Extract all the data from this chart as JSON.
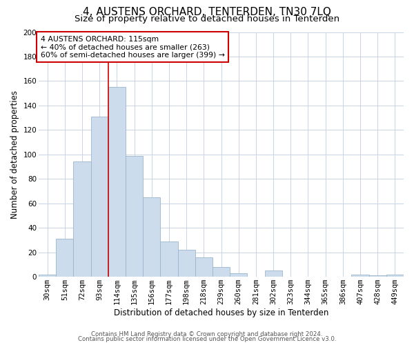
{
  "title": "4, AUSTENS ORCHARD, TENTERDEN, TN30 7LQ",
  "subtitle": "Size of property relative to detached houses in Tenterden",
  "xlabel": "Distribution of detached houses by size in Tenterden",
  "ylabel": "Number of detached properties",
  "bar_labels": [
    "30sqm",
    "51sqm",
    "72sqm",
    "93sqm",
    "114sqm",
    "135sqm",
    "156sqm",
    "177sqm",
    "198sqm",
    "218sqm",
    "239sqm",
    "260sqm",
    "281sqm",
    "302sqm",
    "323sqm",
    "344sqm",
    "365sqm",
    "386sqm",
    "407sqm",
    "428sqm",
    "449sqm"
  ],
  "bar_values": [
    2,
    31,
    94,
    131,
    155,
    99,
    65,
    29,
    22,
    16,
    8,
    3,
    0,
    5,
    0,
    0,
    0,
    0,
    2,
    1,
    2
  ],
  "bar_color": "#ccdcec",
  "bar_edge_color": "#9ab4cc",
  "vline_x_index": 4,
  "vline_color": "#cc0000",
  "ylim": [
    0,
    200
  ],
  "yticks": [
    0,
    20,
    40,
    60,
    80,
    100,
    120,
    140,
    160,
    180,
    200
  ],
  "annotation_box_title": "4 AUSTENS ORCHARD: 115sqm",
  "annotation_line1": "← 40% of detached houses are smaller (263)",
  "annotation_line2": "60% of semi-detached houses are larger (399) →",
  "footer1": "Contains HM Land Registry data © Crown copyright and database right 2024.",
  "footer2": "Contains public sector information licensed under the Open Government Licence v3.0.",
  "background_color": "#ffffff",
  "grid_color": "#c8d4e4",
  "title_fontsize": 11,
  "subtitle_fontsize": 9.5,
  "axis_label_fontsize": 8.5,
  "tick_fontsize": 7.5,
  "footer_fontsize": 6.2
}
